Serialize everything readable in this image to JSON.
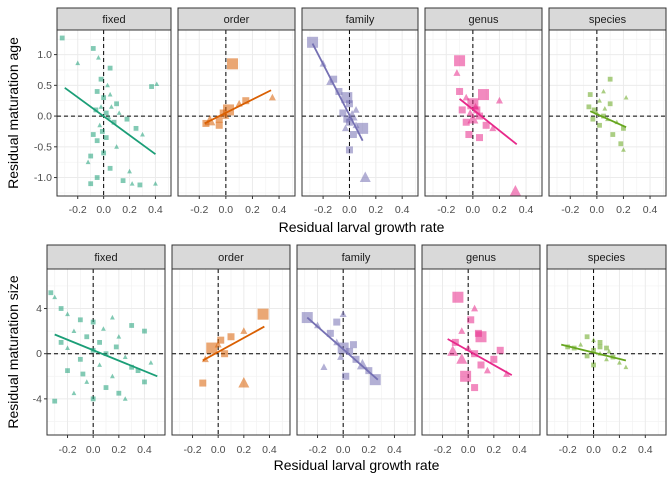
{
  "chart_data": [
    {
      "type": "scatter",
      "ylabel": "Residual maturation age",
      "xlabel": "Residual larval growth rate",
      "xlim": [
        -0.36,
        0.52
      ],
      "ylim": [
        -1.3,
        1.4
      ],
      "xticks": [
        -0.2,
        0.0,
        0.2,
        0.4
      ],
      "xtick_labels": [
        "-0.2",
        "0.0",
        "0.2",
        "0.4"
      ],
      "yticks": [
        -1.0,
        -0.5,
        0.0,
        0.5,
        1.0
      ],
      "ytick_labels": [
        "-1.0",
        "-0.5",
        "0.0",
        "0.5",
        "1.0"
      ],
      "grid": true,
      "reference_lines": {
        "x": 0,
        "y": 0,
        "style": "dashed"
      },
      "panels": [
        {
          "label": "fixed",
          "color": "#1b9e77",
          "fit": {
            "x": [
              -0.3,
              0.4
            ],
            "y": [
              0.46,
              -0.62
            ]
          },
          "points": [
            [
              -0.32,
              1.27
            ],
            [
              -0.2,
              0.86
            ],
            [
              -0.08,
              1.1
            ],
            [
              -0.04,
              0.95
            ],
            [
              0.05,
              0.78
            ],
            [
              -0.02,
              0.6
            ],
            [
              0.03,
              0.5
            ],
            [
              0.37,
              0.48
            ],
            [
              0.41,
              0.52
            ],
            [
              -0.05,
              0.4
            ],
            [
              0.0,
              0.3
            ],
            [
              0.05,
              0.35
            ],
            [
              0.1,
              0.2
            ],
            [
              -0.02,
              0.15
            ],
            [
              -0.06,
              0.1
            ],
            [
              0.02,
              0.05
            ],
            [
              0.04,
              -0.02
            ],
            [
              0.08,
              -0.1
            ],
            [
              -0.03,
              -0.15
            ],
            [
              0.18,
              -0.05
            ],
            [
              0.25,
              -0.2
            ],
            [
              0.3,
              -0.3
            ],
            [
              -0.05,
              -0.4
            ],
            [
              0.1,
              -0.5
            ],
            [
              0.0,
              -0.6
            ],
            [
              -0.1,
              -0.65
            ],
            [
              -0.12,
              -0.75
            ],
            [
              0.05,
              -0.85
            ],
            [
              0.2,
              -0.9
            ],
            [
              -0.05,
              -1.0
            ],
            [
              -0.1,
              -1.1
            ],
            [
              0.22,
              -1.1
            ],
            [
              0.28,
              -1.12
            ],
            [
              0.4,
              -1.1
            ],
            [
              0.15,
              -1.05
            ],
            [
              -0.01,
              -0.25
            ],
            [
              0.12,
              0.05
            ],
            [
              -0.08,
              -0.3
            ],
            [
              0.06,
              0.15
            ],
            [
              0.02,
              -0.35
            ]
          ]
        },
        {
          "label": "order",
          "color": "#d95f02",
          "fit": {
            "x": [
              -0.16,
              0.34
            ],
            "y": [
              -0.12,
              0.42
            ]
          },
          "points": [
            [
              0.05,
              0.85
            ],
            [
              0.35,
              0.3
            ],
            [
              0.15,
              0.25
            ],
            [
              0.1,
              0.2
            ],
            [
              0.02,
              0.1
            ],
            [
              -0.02,
              0.05
            ],
            [
              0.0,
              0.0
            ],
            [
              -0.05,
              -0.05
            ],
            [
              -0.12,
              -0.08
            ],
            [
              -0.15,
              -0.12
            ],
            [
              -0.05,
              -0.15
            ]
          ]
        },
        {
          "label": "family",
          "color": "#7570b3",
          "fit": {
            "x": [
              -0.28,
              0.1
            ],
            "y": [
              1.18,
              -0.4
            ]
          },
          "points": [
            [
              -0.28,
              1.2
            ],
            [
              -0.2,
              0.85
            ],
            [
              -0.12,
              0.6
            ],
            [
              -0.15,
              0.55
            ],
            [
              -0.02,
              0.3
            ],
            [
              0.0,
              0.2
            ],
            [
              0.05,
              0.1
            ],
            [
              -0.05,
              0.05
            ],
            [
              0.02,
              0.0
            ],
            [
              -0.02,
              -0.05
            ],
            [
              0.0,
              -0.1
            ],
            [
              0.05,
              -0.15
            ],
            [
              0.1,
              -0.2
            ],
            [
              -0.03,
              -0.2
            ],
            [
              0.03,
              -0.3
            ],
            [
              0.0,
              -0.55
            ],
            [
              0.12,
              -1.0
            ],
            [
              -0.08,
              0.4
            ]
          ]
        },
        {
          "label": "genus",
          "color": "#e7298a",
          "fit": {
            "x": [
              -0.1,
              0.33
            ],
            "y": [
              0.28,
              -0.46
            ]
          },
          "points": [
            [
              -0.1,
              0.9
            ],
            [
              -0.12,
              0.7
            ],
            [
              -0.1,
              0.4
            ],
            [
              -0.05,
              0.3
            ],
            [
              0.0,
              0.2
            ],
            [
              0.03,
              0.1
            ],
            [
              -0.02,
              0.05
            ],
            [
              0.05,
              0.0
            ],
            [
              0.0,
              -0.05
            ],
            [
              -0.05,
              -0.1
            ],
            [
              0.1,
              -0.15
            ],
            [
              0.15,
              -0.2
            ],
            [
              0.08,
              0.35
            ],
            [
              0.2,
              0.25
            ],
            [
              -0.03,
              -0.3
            ],
            [
              0.05,
              -0.35
            ],
            [
              0.32,
              -1.22
            ],
            [
              -0.08,
              0.1
            ],
            [
              0.02,
              0.15
            ]
          ]
        },
        {
          "label": "species",
          "color": "#66a61e",
          "fit": {
            "x": [
              -0.05,
              0.22
            ],
            "y": [
              0.08,
              -0.18
            ]
          },
          "points": [
            [
              0.1,
              0.6
            ],
            [
              0.05,
              0.4
            ],
            [
              -0.05,
              0.35
            ],
            [
              0.02,
              0.25
            ],
            [
              0.1,
              0.2
            ],
            [
              -0.02,
              0.1
            ],
            [
              0.0,
              0.05
            ],
            [
              0.05,
              0.0
            ],
            [
              0.08,
              -0.05
            ],
            [
              -0.03,
              -0.05
            ],
            [
              0.02,
              -0.15
            ],
            [
              0.15,
              -0.1
            ],
            [
              0.2,
              -0.2
            ],
            [
              0.22,
              0.3
            ],
            [
              -0.06,
              0.15
            ],
            [
              0.18,
              -0.45
            ],
            [
              0.2,
              -0.55
            ],
            [
              0.12,
              -0.3
            ],
            [
              0.06,
              0.12
            ]
          ]
        }
      ]
    },
    {
      "type": "scatter",
      "ylabel": "Residual maturation size",
      "xlabel": "Residual larval growth rate",
      "xlim": [
        -0.36,
        0.56
      ],
      "ylim": [
        -7.2,
        7.5
      ],
      "xticks": [
        -0.2,
        0.0,
        0.2,
        0.4
      ],
      "xtick_labels": [
        "-0.2",
        "0.0",
        "0.2",
        "0.4"
      ],
      "yticks": [
        -4,
        0,
        4
      ],
      "ytick_labels": [
        "-4",
        "0",
        "4"
      ],
      "grid": true,
      "reference_lines": {
        "x": 0,
        "y": 0,
        "style": "dashed"
      },
      "panels": [
        {
          "label": "fixed",
          "color": "#1b9e77",
          "fit": {
            "x": [
              -0.3,
              0.5
            ],
            "y": [
              1.7,
              -2.0
            ]
          },
          "points": [
            [
              -0.33,
              5.4
            ],
            [
              -0.3,
              5.0
            ],
            [
              -0.25,
              4.0
            ],
            [
              -0.2,
              3.5
            ],
            [
              -0.1,
              3.0
            ],
            [
              0.0,
              2.8
            ],
            [
              0.15,
              3.2
            ],
            [
              0.3,
              2.5
            ],
            [
              -0.15,
              2.0
            ],
            [
              -0.05,
              1.5
            ],
            [
              0.05,
              1.0
            ],
            [
              0.2,
              1.5
            ],
            [
              0.4,
              2.0
            ],
            [
              -0.2,
              0.5
            ],
            [
              0.0,
              0.3
            ],
            [
              0.1,
              0.0
            ],
            [
              0.25,
              -0.3
            ],
            [
              -0.1,
              -0.5
            ],
            [
              0.05,
              -1.0
            ],
            [
              0.3,
              -1.2
            ],
            [
              -0.2,
              -1.5
            ],
            [
              0.15,
              -2.0
            ],
            [
              0.4,
              -2.5
            ],
            [
              -0.05,
              -2.5
            ],
            [
              0.1,
              -3.0
            ],
            [
              0.2,
              -3.5
            ],
            [
              -0.15,
              -3.5
            ],
            [
              0.0,
              -4.0
            ],
            [
              0.25,
              -4.0
            ],
            [
              -0.3,
              -4.2
            ],
            [
              0.35,
              -1.5
            ],
            [
              0.45,
              -0.8
            ],
            [
              -0.25,
              1.0
            ],
            [
              0.08,
              2.2
            ],
            [
              -0.08,
              -1.8
            ],
            [
              0.18,
              0.6
            ]
          ]
        },
        {
          "label": "order",
          "color": "#d95f02",
          "fit": {
            "x": [
              -0.12,
              0.36
            ],
            "y": [
              -0.6,
              2.4
            ]
          },
          "points": [
            [
              0.35,
              3.5
            ],
            [
              0.2,
              2.0
            ],
            [
              0.1,
              1.5
            ],
            [
              0.0,
              0.8
            ],
            [
              -0.05,
              0.5
            ],
            [
              0.05,
              0.0
            ],
            [
              -0.1,
              -0.5
            ],
            [
              -0.12,
              -2.6
            ],
            [
              0.2,
              -2.6
            ],
            [
              0.02,
              1.2
            ]
          ]
        },
        {
          "label": "family",
          "color": "#7570b3",
          "fit": {
            "x": [
              -0.28,
              0.27
            ],
            "y": [
              3.2,
              -2.3
            ]
          },
          "points": [
            [
              -0.28,
              3.2
            ],
            [
              -0.2,
              2.5
            ],
            [
              -0.1,
              1.8
            ],
            [
              -0.05,
              1.0
            ],
            [
              0.0,
              0.5
            ],
            [
              0.05,
              0.2
            ],
            [
              -0.02,
              -0.3
            ],
            [
              0.1,
              -0.5
            ],
            [
              0.15,
              -1.0
            ],
            [
              0.2,
              -1.5
            ],
            [
              0.02,
              -2.0
            ],
            [
              -0.15,
              -1.2
            ],
            [
              0.25,
              -2.3
            ],
            [
              0.0,
              3.5
            ],
            [
              -0.05,
              2.8
            ],
            [
              0.08,
              0.8
            ]
          ]
        },
        {
          "label": "genus",
          "color": "#e7298a",
          "fit": {
            "x": [
              -0.16,
              0.34
            ],
            "y": [
              1.3,
              -1.9
            ]
          },
          "points": [
            [
              -0.08,
              5.0
            ],
            [
              0.05,
              4.0
            ],
            [
              0.02,
              3.0
            ],
            [
              -0.05,
              2.0
            ],
            [
              0.1,
              1.5
            ],
            [
              -0.1,
              1.0
            ],
            [
              0.0,
              0.5
            ],
            [
              0.05,
              0.0
            ],
            [
              -0.05,
              -0.5
            ],
            [
              0.1,
              -1.0
            ],
            [
              0.2,
              -0.5
            ],
            [
              0.15,
              -1.5
            ],
            [
              -0.02,
              -2.0
            ],
            [
              0.3,
              -1.8
            ],
            [
              0.05,
              -3.0
            ],
            [
              0.25,
              0.3
            ],
            [
              -0.12,
              0.2
            ],
            [
              0.08,
              1.8
            ]
          ]
        },
        {
          "label": "species",
          "color": "#66a61e",
          "fit": {
            "x": [
              -0.25,
              0.25
            ],
            "y": [
              0.8,
              -0.6
            ]
          },
          "points": [
            [
              -0.05,
              1.5
            ],
            [
              0.0,
              1.2
            ],
            [
              0.05,
              1.0
            ],
            [
              -0.1,
              0.8
            ],
            [
              0.1,
              0.5
            ],
            [
              0.0,
              0.3
            ],
            [
              0.05,
              0.0
            ],
            [
              -0.05,
              -0.2
            ],
            [
              0.1,
              -0.5
            ],
            [
              0.15,
              -0.3
            ],
            [
              -0.15,
              0.5
            ],
            [
              0.2,
              -0.8
            ],
            [
              0.0,
              -1.0
            ],
            [
              0.25,
              -1.2
            ],
            [
              -0.2,
              0.6
            ],
            [
              0.05,
              0.6
            ],
            [
              0.12,
              0.2
            ]
          ]
        }
      ]
    }
  ]
}
